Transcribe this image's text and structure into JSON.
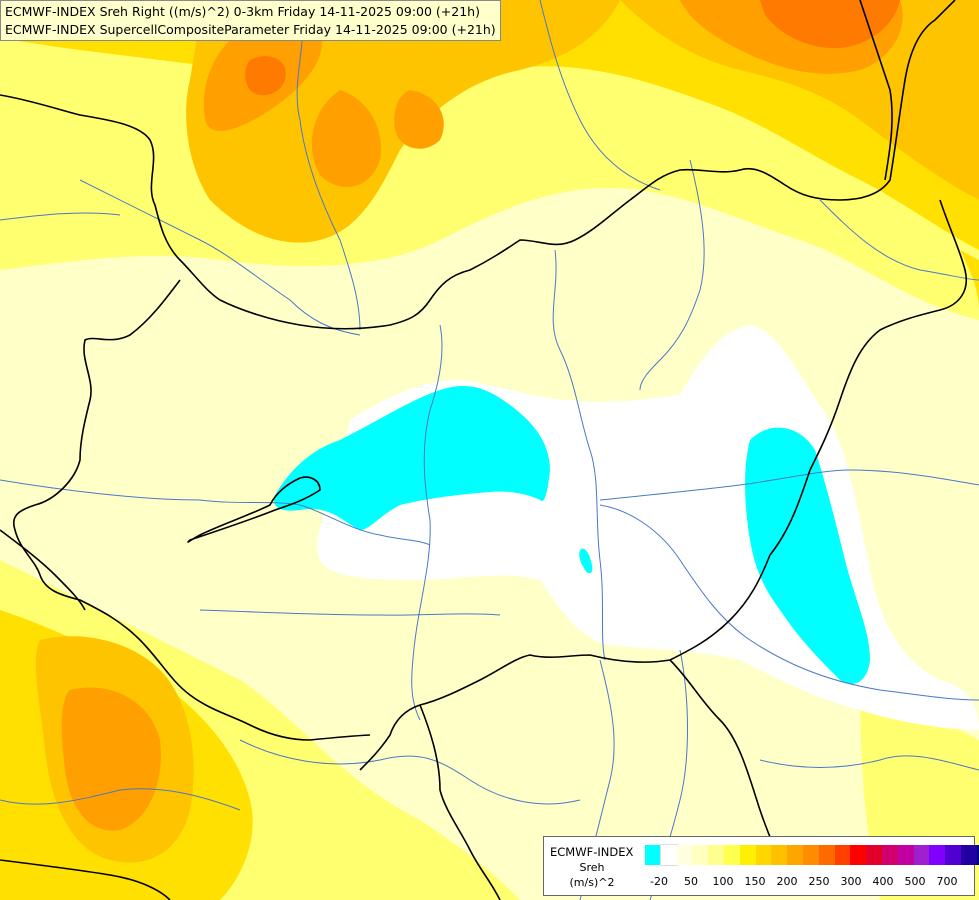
{
  "header": {
    "line1": "ECMWF-INDEX Sreh Right ((m/s)^2) 0-3km Friday 14-11-2025 09:00 (+21h)",
    "line2": "ECMWF-INDEX SupercellCompositeParameter Friday 14-11-2025 09:00 (+21h)"
  },
  "legend": {
    "title": "ECMWF-INDEX",
    "variable": "Sreh",
    "unit": "(m/s)^2",
    "colors": [
      "#00ffff",
      "#ffffff",
      "#ffffe0",
      "#ffffc0",
      "#ffff90",
      "#ffff50",
      "#ffef00",
      "#ffd700",
      "#ffc000",
      "#ffa500",
      "#ff8c00",
      "#ff6a00",
      "#ff4000",
      "#ff0000",
      "#e0002a",
      "#d00070",
      "#c000a0",
      "#a020d0",
      "#8000ff",
      "#5000d0",
      "#2000a0",
      "#000080"
    ],
    "ticks": [
      "-20",
      "50",
      "100",
      "150",
      "200",
      "250",
      "300",
      "400",
      "500",
      "700"
    ]
  },
  "colors": {
    "background": "#ffffc0",
    "cyan_zone": "#00ffff",
    "border": "#000000",
    "river": "#4a78c8"
  }
}
